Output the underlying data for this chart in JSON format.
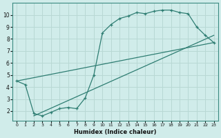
{
  "line1_x": [
    0,
    1,
    2,
    3,
    4,
    5,
    6,
    7,
    8,
    9,
    10,
    11,
    12,
    13,
    14,
    15,
    16,
    17,
    18,
    19,
    20,
    21,
    22,
    23
  ],
  "line1_y": [
    4.5,
    4.2,
    1.8,
    1.6,
    1.9,
    2.2,
    2.3,
    2.2,
    3.1,
    5.0,
    8.5,
    9.2,
    9.7,
    9.9,
    10.2,
    10.1,
    10.3,
    10.4,
    10.4,
    10.2,
    10.1,
    9.0,
    8.3,
    7.7
  ],
  "line2_x": [
    0,
    23
  ],
  "line2_y": [
    4.5,
    7.7
  ],
  "line3_x": [
    2,
    23
  ],
  "line3_y": [
    1.6,
    8.3
  ],
  "line_color": "#2e7d72",
  "bg_color": "#d0ecea",
  "grid_color": "#b8d8d4",
  "xlabel": "Humidex (Indice chaleur)",
  "xlim_min": -0.5,
  "xlim_max": 23.5,
  "ylim_min": 1.2,
  "ylim_max": 11.0,
  "xticks": [
    0,
    1,
    2,
    3,
    4,
    5,
    6,
    7,
    8,
    9,
    10,
    11,
    12,
    13,
    14,
    15,
    16,
    17,
    18,
    19,
    20,
    21,
    22,
    23
  ],
  "yticks": [
    2,
    3,
    4,
    5,
    6,
    7,
    8,
    9,
    10
  ]
}
